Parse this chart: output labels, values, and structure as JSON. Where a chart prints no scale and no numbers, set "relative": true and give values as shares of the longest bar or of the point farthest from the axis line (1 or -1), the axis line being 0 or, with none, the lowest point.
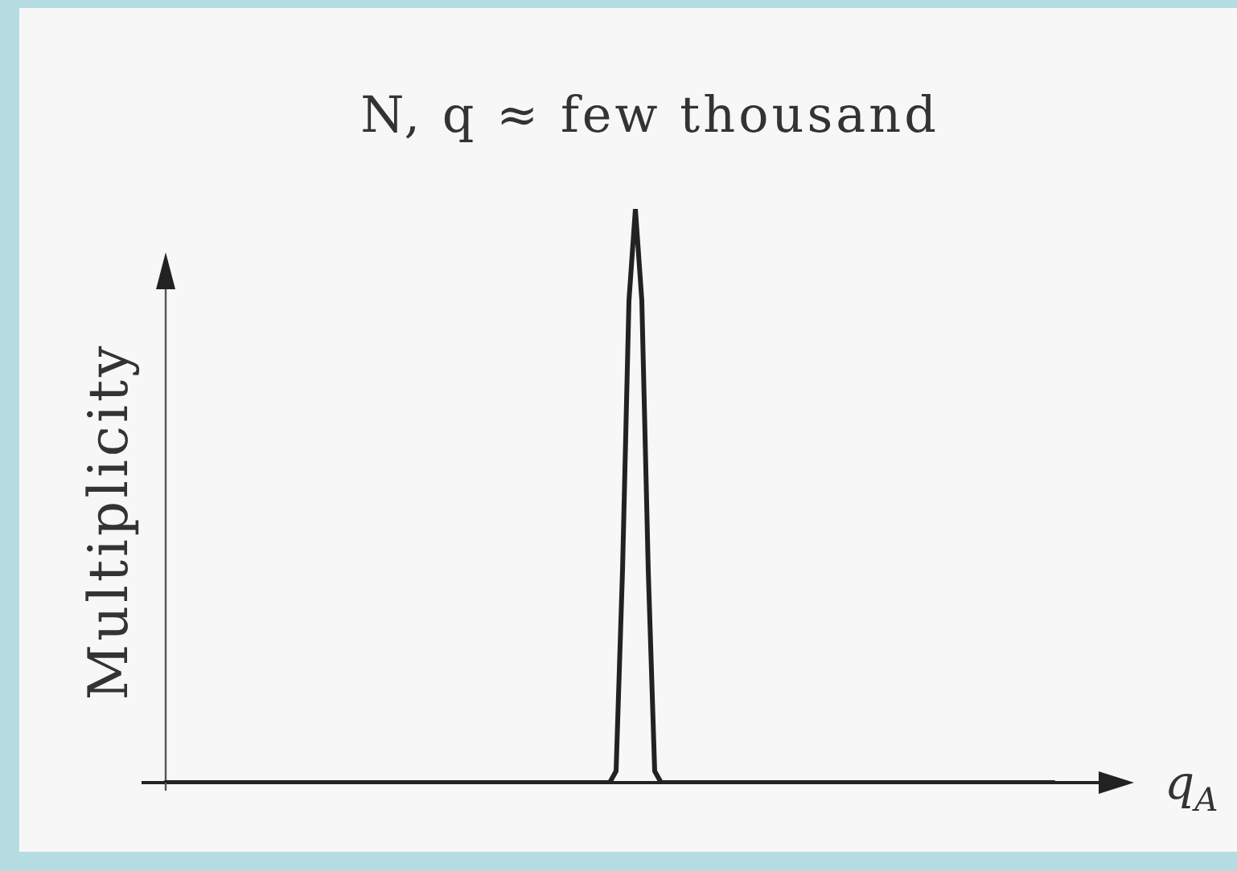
{
  "chart_data": {
    "type": "line",
    "title": "N, q ≈ few thousand",
    "xlabel": "q$_{A}$",
    "ylabel": "Multiplicity",
    "relative": true,
    "color": "#222222",
    "categories": [
      null,
      null,
      null,
      null,
      null,
      null,
      null,
      null,
      null,
      null,
      null,
      null,
      null,
      null,
      null,
      null,
      null,
      null,
      null,
      null,
      null,
      null,
      null,
      null,
      null,
      null,
      null,
      null,
      null,
      null,
      null,
      null,
      null,
      null,
      null,
      null,
      null,
      null,
      null,
      null,
      null,
      null,
      null,
      null,
      null,
      null,
      null,
      null,
      null,
      null,
      null,
      null,
      null,
      null,
      null,
      null,
      null,
      null,
      null,
      null,
      null,
      null,
      null,
      null,
      null,
      null,
      null,
      null,
      null,
      null,
      null,
      null,
      null,
      null,
      null,
      null,
      null,
      null,
      null,
      null,
      null,
      null,
      null,
      null,
      null,
      null,
      null,
      null,
      null,
      null,
      null,
      null,
      null,
      null,
      null,
      null,
      null,
      null,
      null,
      null,
      null,
      null,
      null,
      null,
      null,
      null,
      null,
      null,
      null,
      null,
      null,
      null,
      null,
      null,
      null,
      null,
      null,
      null,
      null,
      null,
      null,
      null,
      null,
      null,
      null,
      null,
      null,
      null,
      null,
      null,
      null,
      null,
      null,
      null,
      null,
      null,
      null,
      null,
      null
    ],
    "values": [
      0,
      0,
      0,
      0,
      0,
      0,
      0,
      0,
      0,
      0,
      0,
      0,
      0,
      0,
      0,
      0,
      0,
      0,
      0,
      0,
      0,
      0,
      0,
      0,
      0,
      0,
      0,
      0,
      0,
      0,
      0,
      0,
      0,
      0,
      0,
      0,
      0,
      0,
      0,
      0,
      0,
      0,
      0,
      0,
      0,
      0,
      0,
      0,
      0,
      0,
      0,
      0,
      0,
      0,
      0,
      0,
      0,
      0,
      0,
      0,
      0,
      0,
      0,
      0,
      0,
      0,
      0,
      0,
      0,
      0,
      0.02,
      0.37,
      0.84,
      1,
      0.84,
      0.37,
      0.02,
      0,
      0,
      0,
      0,
      0,
      0,
      0,
      0,
      0,
      0,
      0,
      0,
      0,
      0,
      0,
      0,
      0,
      0,
      0,
      0,
      0,
      0,
      0,
      0,
      0,
      0,
      0,
      0,
      0,
      0,
      0,
      0,
      0,
      0,
      0,
      0,
      0,
      0,
      0,
      0,
      0,
      0,
      0,
      0,
      0,
      0,
      0,
      0,
      0,
      0,
      0,
      0,
      0,
      0,
      0,
      0,
      0,
      0,
      0,
      0,
      0,
      0
    ]
  }
}
